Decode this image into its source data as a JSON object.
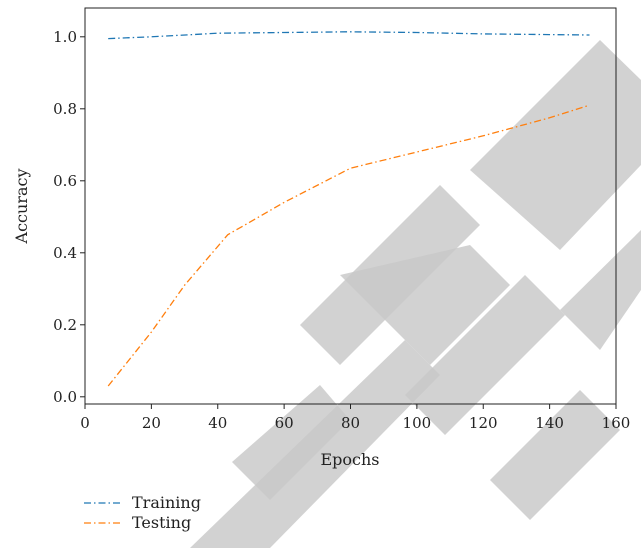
{
  "chart_data": {
    "type": "line",
    "xlabel": "Epochs",
    "ylabel": "Accuracy",
    "xlim": [
      0,
      160
    ],
    "ylim": [
      -0.02,
      1.08
    ],
    "x_ticks": [
      0,
      20,
      40,
      60,
      80,
      100,
      120,
      140,
      160
    ],
    "y_ticks": [
      0.0,
      0.2,
      0.4,
      0.6,
      0.8,
      1.0
    ],
    "x_tick_labels": [
      "0",
      "20",
      "40",
      "60",
      "80",
      "100",
      "120",
      "140",
      "160"
    ],
    "y_tick_labels": [
      "0.0",
      "0.2",
      "0.4",
      "0.6",
      "0.8",
      "1.0"
    ],
    "grid": false,
    "legend_position": "below plot, left",
    "series": [
      {
        "name": "Training",
        "color": "#1f77b4",
        "line_style": "dash-dot",
        "x": [
          7,
          20,
          40,
          60,
          80,
          100,
          120,
          140,
          152
        ],
        "y": [
          0.995,
          1.0,
          1.01,
          1.012,
          1.014,
          1.012,
          1.008,
          1.006,
          1.005
        ]
      },
      {
        "name": "Testing",
        "color": "#ff7f0e",
        "line_style": "dash-dot",
        "x": [
          7,
          20,
          30,
          43,
          60,
          80,
          100,
          120,
          140,
          152
        ],
        "y": [
          0.03,
          0.18,
          0.31,
          0.45,
          0.54,
          0.635,
          0.68,
          0.725,
          0.775,
          0.81
        ]
      }
    ]
  }
}
